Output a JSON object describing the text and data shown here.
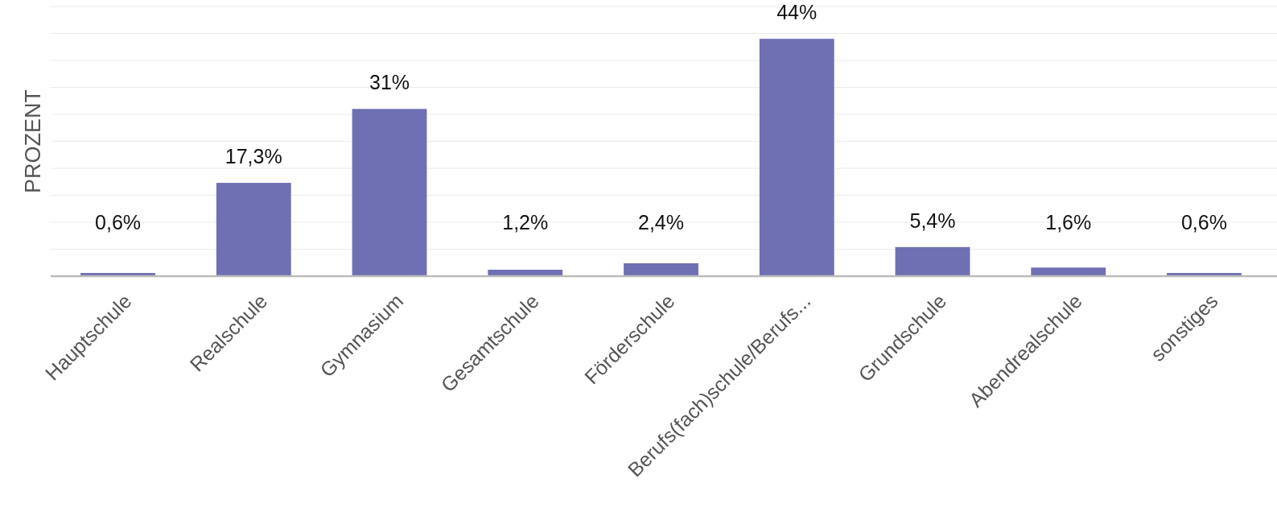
{
  "chart_data": {
    "type": "bar",
    "ylabel": "PROZENT",
    "categories": [
      "Hauptschule",
      "Realschule",
      "Gymnasium",
      "Gesamtschule",
      "Förderschule",
      "Berufs(fach)schule/Berufs...",
      "Grundschule",
      "Abendrealschule",
      "sonstiges"
    ],
    "values": [
      0.6,
      17.3,
      31,
      1.2,
      2.4,
      44,
      5.4,
      1.6,
      0.6
    ],
    "value_labels": [
      "0,6%",
      "17,3%",
      "31%",
      "1,2%",
      "2,4%",
      "44%",
      "5,4%",
      "1,6%",
      "0,6%"
    ],
    "color": "#6f6fb3",
    "ylim": [
      0,
      50
    ],
    "yticks": [
      {
        "value": 0,
        "label": null
      },
      {
        "value": 5,
        "label": null
      },
      {
        "value": 10,
        "label": null
      },
      {
        "value": 15,
        "label": null
      },
      {
        "value": 20,
        "label": null
      },
      {
        "value": 25,
        "label": null
      },
      {
        "value": 30,
        "label": null
      },
      {
        "value": 35,
        "label": null
      },
      {
        "value": 40,
        "label": null
      },
      {
        "value": 45,
        "label": null
      },
      {
        "value": 50,
        "label": null
      }
    ],
    "grid": "y",
    "tick_labels": "x"
  }
}
